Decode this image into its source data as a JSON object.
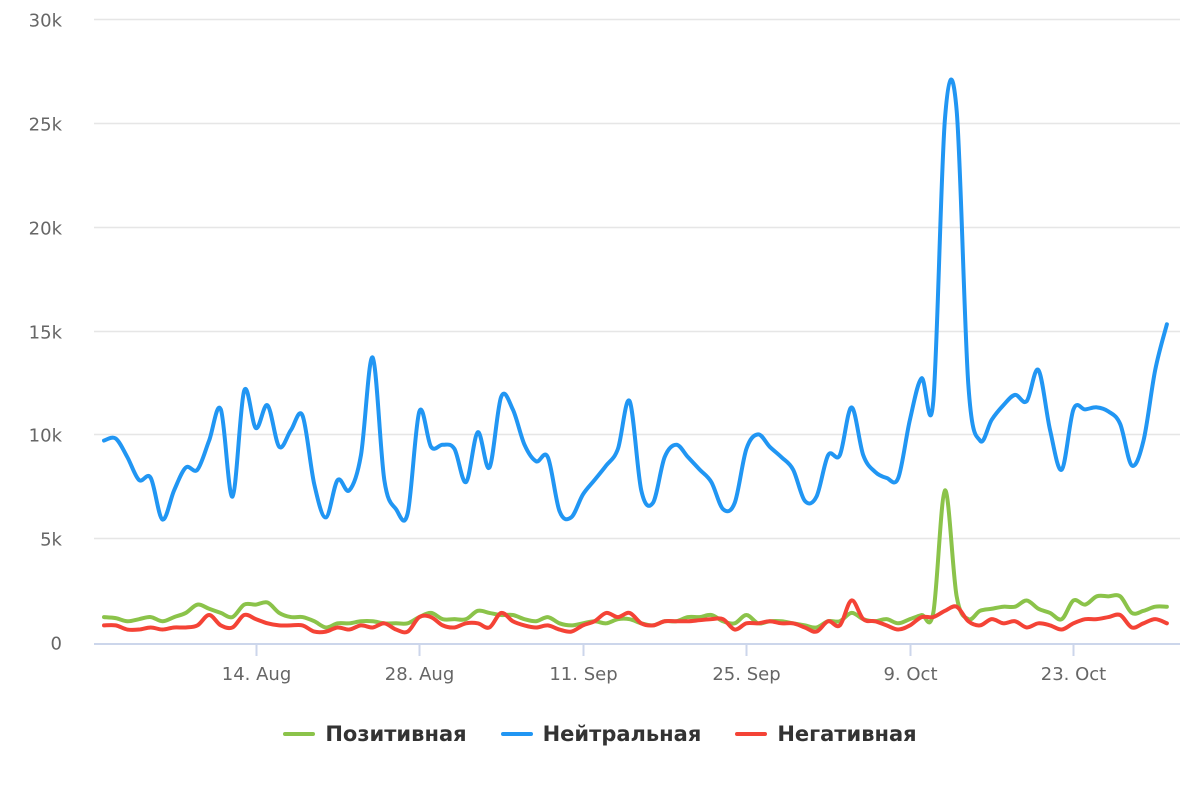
{
  "chart_data": {
    "type": "line",
    "title": "",
    "xlabel": "",
    "ylabel": "",
    "x_start": "1. Aug",
    "x_unit": "day",
    "ylim": [
      0,
      30000
    ],
    "y_ticks": [
      0,
      5000,
      10000,
      15000,
      20000,
      25000,
      30000
    ],
    "y_tick_labels": [
      "0",
      "5k",
      "10k",
      "15k",
      "20k",
      "25k",
      "30k"
    ],
    "x_ticks": [
      {
        "day": 13,
        "label": "14. Aug"
      },
      {
        "day": 27,
        "label": "28. Aug"
      },
      {
        "day": 41,
        "label": "11. Sep"
      },
      {
        "day": 55,
        "label": "25. Sep"
      },
      {
        "day": 69,
        "label": "9. Oct"
      },
      {
        "day": 83,
        "label": "23. Oct"
      }
    ],
    "grid": true,
    "legend_position": "bottom-center",
    "series": [
      {
        "name": "Позитивная",
        "color": "#8bc34a",
        "values": [
          1200,
          1150,
          1000,
          1100,
          1200,
          1000,
          1200,
          1400,
          1800,
          1600,
          1400,
          1200,
          1800,
          1800,
          1900,
          1400,
          1200,
          1200,
          1000,
          700,
          900,
          900,
          1000,
          1000,
          900,
          900,
          900,
          1200,
          1400,
          1100,
          1100,
          1100,
          1500,
          1400,
          1300,
          1300,
          1100,
          1000,
          1200,
          900,
          800,
          900,
          1000,
          900,
          1100,
          1100,
          900,
          800,
          1000,
          1000,
          1200,
          1200,
          1300,
          1000,
          900,
          1300,
          900,
          1000,
          1000,
          900,
          800,
          700,
          1000,
          1000,
          1400,
          1100,
          1000,
          1100,
          900,
          1100,
          1300,
          1400,
          7300,
          2200,
          1100,
          1500,
          1600,
          1700,
          1700,
          2000,
          1600,
          1400,
          1100,
          2000,
          1800,
          2200,
          2200,
          2200,
          1400,
          1500,
          1700,
          1700
        ]
      },
      {
        "name": "Нейтральная",
        "color": "#2196f3",
        "values": [
          9700,
          9800,
          8900,
          7800,
          7900,
          5900,
          7300,
          8400,
          8300,
          9700,
          11200,
          7000,
          12100,
          10300,
          11400,
          9400,
          10200,
          10900,
          7600,
          6000,
          7800,
          7300,
          9000,
          13700,
          7800,
          6400,
          6200,
          11100,
          9400,
          9500,
          9300,
          7700,
          10100,
          8400,
          11800,
          11200,
          9500,
          8700,
          8900,
          6300,
          6000,
          7100,
          7800,
          8500,
          9300,
          11600,
          7300,
          6700,
          8900,
          9500,
          8900,
          8300,
          7700,
          6400,
          6700,
          9300,
          10000,
          9400,
          8900,
          8300,
          6800,
          7000,
          9000,
          9000,
          11300,
          9000,
          8200,
          7900,
          7900,
          10700,
          12700,
          11600,
          25200,
          25600,
          12400,
          9700,
          10700,
          11400,
          11900,
          11600,
          13100,
          10200,
          8300,
          11200,
          11200,
          11300,
          11100,
          10500,
          8500,
          9700,
          13100,
          15300
        ]
      },
      {
        "name": "Негативная",
        "color": "#f44336",
        "values": [
          800,
          800,
          600,
          600,
          700,
          600,
          700,
          700,
          800,
          1300,
          800,
          700,
          1300,
          1100,
          900,
          800,
          800,
          800,
          500,
          500,
          700,
          600,
          800,
          700,
          900,
          600,
          500,
          1200,
          1200,
          800,
          700,
          900,
          900,
          700,
          1400,
          1000,
          800,
          700,
          800,
          600,
          500,
          800,
          1000,
          1400,
          1200,
          1400,
          900,
          800,
          1000,
          1000,
          1000,
          1050,
          1100,
          1100,
          600,
          900,
          900,
          1000,
          900,
          900,
          700,
          500,
          1000,
          800,
          2000,
          1100,
          1000,
          800,
          600,
          800,
          1200,
          1200,
          1500,
          1700,
          1000,
          800,
          1100,
          900,
          1000,
          700,
          900,
          800,
          600,
          900,
          1100,
          1100,
          1200,
          1300,
          700,
          900,
          1100,
          900
        ]
      }
    ]
  }
}
